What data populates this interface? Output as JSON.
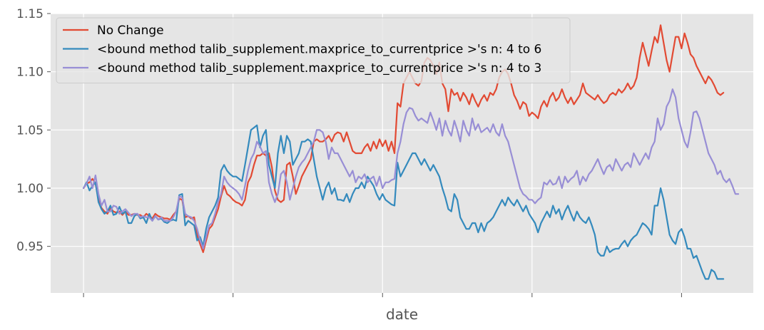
{
  "chart_data": {
    "type": "line",
    "title": "",
    "xlabel": "date",
    "ylabel": "",
    "ylim": [
      0.91,
      1.15
    ],
    "yticks": [
      0.95,
      1.0,
      1.05,
      1.1,
      1.15
    ],
    "ytick_labels": [
      "0.95",
      "1.00",
      "1.05",
      "1.10",
      "1.15"
    ],
    "xticks": [
      0,
      50,
      100,
      150,
      200
    ],
    "xtick_labels": [
      "",
      "",
      "",
      "",
      ""
    ],
    "xlim": [
      -11,
      224
    ],
    "grid": true,
    "style": "ggplot",
    "legend_position": "upper-left",
    "series": [
      {
        "name": "No Change",
        "color": "#E24A33",
        "values": [
          1.0,
          1.004,
          1.005,
          1.008,
          1.004,
          0.99,
          0.983,
          0.98,
          0.978,
          0.983,
          0.98,
          0.979,
          0.98,
          0.977,
          0.98,
          0.977,
          0.977,
          0.978,
          0.977,
          0.977,
          0.975,
          0.978,
          0.976,
          0.974,
          0.978,
          0.976,
          0.975,
          0.974,
          0.974,
          0.973,
          0.977,
          0.98,
          0.991,
          0.99,
          0.975,
          0.976,
          0.974,
          0.975,
          0.96,
          0.952,
          0.945,
          0.955,
          0.965,
          0.968,
          0.975,
          0.982,
          0.993,
          1.002,
          0.995,
          0.993,
          0.99,
          0.988,
          0.987,
          0.985,
          0.99,
          1.005,
          1.01,
          1.02,
          1.028,
          1.028,
          1.03,
          1.028,
          1.03,
          1.018,
          0.998,
          0.99,
          0.988,
          0.99,
          1.02,
          1.022,
          1.01,
          0.995,
          1.002,
          1.01,
          1.015,
          1.02,
          1.025,
          1.04,
          1.042,
          1.04,
          1.04,
          1.042,
          1.045,
          1.04,
          1.046,
          1.048,
          1.047,
          1.04,
          1.048,
          1.04,
          1.032,
          1.03,
          1.03,
          1.03,
          1.035,
          1.038,
          1.032,
          1.04,
          1.034,
          1.042,
          1.036,
          1.041,
          1.032,
          1.04,
          1.03,
          1.073,
          1.07,
          1.09,
          1.095,
          1.1,
          1.095,
          1.09,
          1.088,
          1.092,
          1.108,
          1.112,
          1.11,
          1.105,
          1.098,
          1.108,
          1.09,
          1.085,
          1.066,
          1.085,
          1.08,
          1.082,
          1.075,
          1.082,
          1.078,
          1.072,
          1.081,
          1.075,
          1.07,
          1.076,
          1.08,
          1.075,
          1.082,
          1.08,
          1.085,
          1.095,
          1.1,
          1.102,
          1.098,
          1.09,
          1.08,
          1.075,
          1.068,
          1.074,
          1.072,
          1.062,
          1.065,
          1.063,
          1.06,
          1.07,
          1.075,
          1.07,
          1.078,
          1.082,
          1.075,
          1.078,
          1.085,
          1.078,
          1.073,
          1.078,
          1.072,
          1.076,
          1.08,
          1.09,
          1.082,
          1.08,
          1.078,
          1.076,
          1.08,
          1.076,
          1.073,
          1.075,
          1.08,
          1.082,
          1.08,
          1.085,
          1.082,
          1.085,
          1.09,
          1.085,
          1.088,
          1.095,
          1.112,
          1.125,
          1.115,
          1.105,
          1.118,
          1.13,
          1.125,
          1.14,
          1.125,
          1.11,
          1.1,
          1.115,
          1.13,
          1.13,
          1.12,
          1.133,
          1.125,
          1.115,
          1.112,
          1.105,
          1.1,
          1.095,
          1.09,
          1.096,
          1.093,
          1.088,
          1.082,
          1.08,
          1.082
        ]
      },
      {
        "name": "<bound method talib_supplement.maxprice_to_currentprice >'s n: 4 to 6",
        "color": "#348ABD",
        "values": [
          1.0,
          1.005,
          0.998,
          1.002,
          1.005,
          0.988,
          0.982,
          0.978,
          0.98,
          0.985,
          0.977,
          0.978,
          0.984,
          0.978,
          0.98,
          0.97,
          0.97,
          0.976,
          0.978,
          0.974,
          0.975,
          0.97,
          0.978,
          0.972,
          0.976,
          0.973,
          0.974,
          0.971,
          0.97,
          0.972,
          0.973,
          0.972,
          0.994,
          0.995,
          0.968,
          0.972,
          0.97,
          0.968,
          0.955,
          0.958,
          0.95,
          0.965,
          0.975,
          0.98,
          0.985,
          0.992,
          1.015,
          1.02,
          1.015,
          1.012,
          1.01,
          1.01,
          1.008,
          1.006,
          1.02,
          1.035,
          1.05,
          1.052,
          1.054,
          1.035,
          1.045,
          1.05,
          1.02,
          1.01,
          1.0,
          1.03,
          1.045,
          1.03,
          1.045,
          1.04,
          1.02,
          1.025,
          1.03,
          1.04,
          1.04,
          1.042,
          1.04,
          1.025,
          1.01,
          1.0,
          0.99,
          1.0,
          1.005,
          0.995,
          1.0,
          0.99,
          0.99,
          0.989,
          0.995,
          0.988,
          0.995,
          1.0,
          1.0,
          1.005,
          1.0,
          1.01,
          1.006,
          1.002,
          0.995,
          0.99,
          0.995,
          0.99,
          0.988,
          0.986,
          0.985,
          1.022,
          1.01,
          1.015,
          1.02,
          1.025,
          1.03,
          1.03,
          1.025,
          1.02,
          1.025,
          1.02,
          1.015,
          1.02,
          1.015,
          1.01,
          1.0,
          0.992,
          0.982,
          0.98,
          0.995,
          0.99,
          0.975,
          0.97,
          0.965,
          0.965,
          0.97,
          0.97,
          0.962,
          0.97,
          0.963,
          0.97,
          0.972,
          0.975,
          0.98,
          0.985,
          0.99,
          0.985,
          0.992,
          0.988,
          0.985,
          0.99,
          0.985,
          0.98,
          0.985,
          0.978,
          0.974,
          0.97,
          0.962,
          0.97,
          0.975,
          0.98,
          0.975,
          0.985,
          0.978,
          0.982,
          0.973,
          0.98,
          0.985,
          0.978,
          0.972,
          0.98,
          0.975,
          0.972,
          0.97,
          0.975,
          0.968,
          0.96,
          0.945,
          0.942,
          0.942,
          0.95,
          0.945,
          0.947,
          0.948,
          0.948,
          0.952,
          0.955,
          0.95,
          0.955,
          0.958,
          0.96,
          0.965,
          0.97,
          0.968,
          0.965,
          0.96,
          0.985,
          0.985,
          1.0,
          0.99,
          0.975,
          0.96,
          0.955,
          0.952,
          0.962,
          0.965,
          0.958,
          0.948,
          0.948,
          0.94,
          0.942,
          0.935,
          0.928,
          0.922,
          0.922,
          0.93,
          0.928,
          0.922,
          0.922,
          0.922
        ]
      },
      {
        "name": "<bound method talib_supplement.maxprice_to_currentprice >'s n: 4 to 3",
        "color": "#988ED5",
        "values": [
          1.0,
          1.004,
          1.01,
          1.0,
          1.011,
          0.995,
          0.985,
          0.99,
          0.98,
          0.98,
          0.985,
          0.984,
          0.978,
          0.98,
          0.982,
          0.979,
          0.976,
          0.978,
          0.978,
          0.975,
          0.976,
          0.975,
          0.975,
          0.972,
          0.976,
          0.973,
          0.975,
          0.972,
          0.972,
          0.972,
          0.975,
          0.98,
          0.993,
          0.992,
          0.978,
          0.976,
          0.975,
          0.972,
          0.965,
          0.955,
          0.948,
          0.958,
          0.968,
          0.97,
          0.978,
          0.988,
          0.995,
          1.01,
          1.005,
          1.002,
          1.0,
          0.998,
          0.995,
          0.99,
          1.002,
          1.015,
          1.025,
          1.03,
          1.04,
          1.036,
          1.03,
          1.032,
          1.005,
          0.995,
          0.988,
          0.995,
          1.012,
          1.015,
          1.005,
          0.99,
          1.0,
          1.01,
          1.018,
          1.022,
          1.025,
          1.03,
          1.035,
          1.04,
          1.05,
          1.05,
          1.048,
          1.04,
          1.025,
          1.035,
          1.03,
          1.03,
          1.025,
          1.02,
          1.015,
          1.01,
          1.015,
          1.005,
          1.01,
          1.008,
          1.012,
          1.005,
          1.008,
          1.01,
          1.002,
          1.01,
          1.0,
          1.005,
          1.005,
          1.007,
          1.008,
          1.03,
          1.04,
          1.055,
          1.065,
          1.069,
          1.068,
          1.062,
          1.058,
          1.06,
          1.058,
          1.056,
          1.065,
          1.058,
          1.05,
          1.06,
          1.045,
          1.058,
          1.05,
          1.045,
          1.058,
          1.05,
          1.04,
          1.058,
          1.05,
          1.045,
          1.06,
          1.05,
          1.055,
          1.048,
          1.05,
          1.052,
          1.048,
          1.055,
          1.048,
          1.045,
          1.055,
          1.045,
          1.04,
          1.03,
          1.02,
          1.01,
          1.0,
          0.995,
          0.993,
          0.99,
          0.99,
          0.987,
          0.99,
          0.992,
          1.005,
          1.003,
          1.007,
          1.003,
          1.004,
          1.01,
          1.0,
          1.01,
          1.005,
          1.008,
          1.01,
          1.015,
          1.003,
          1.01,
          1.006,
          1.012,
          1.015,
          1.02,
          1.025,
          1.018,
          1.012,
          1.018,
          1.02,
          1.015,
          1.025,
          1.02,
          1.015,
          1.02,
          1.022,
          1.018,
          1.03,
          1.025,
          1.02,
          1.025,
          1.03,
          1.025,
          1.035,
          1.04,
          1.06,
          1.05,
          1.055,
          1.07,
          1.075,
          1.085,
          1.078,
          1.06,
          1.05,
          1.04,
          1.035,
          1.048,
          1.065,
          1.066,
          1.06,
          1.05,
          1.04,
          1.03,
          1.025,
          1.02,
          1.012,
          1.015,
          1.008,
          1.005,
          1.008,
          1.002,
          0.995,
          0.995
        ]
      }
    ]
  }
}
